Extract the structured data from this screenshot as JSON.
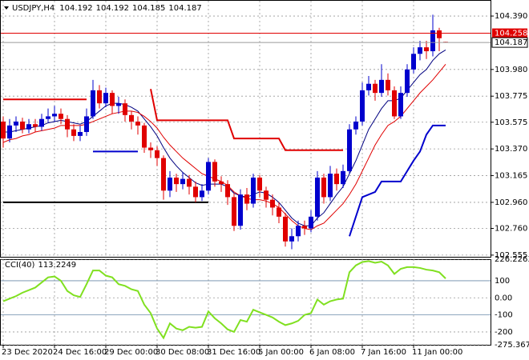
{
  "chart_data": {
    "type": "candlestick",
    "title": "USDJPY,H4",
    "categories": [
      "23 Dec 2020",
      null,
      null,
      null,
      null,
      null,
      null,
      null,
      "24 Dec 16:00",
      null,
      null,
      null,
      null,
      null,
      null,
      null,
      "29 Dec 00:00",
      null,
      null,
      null,
      null,
      null,
      null,
      null,
      "30 Dec 08:00",
      null,
      null,
      null,
      null,
      null,
      null,
      null,
      "31 Dec 16:00",
      null,
      null,
      null,
      null,
      null,
      null,
      null,
      "5 Jan 00:00",
      null,
      null,
      null,
      null,
      null,
      null,
      null,
      "6 Jan 08:00",
      null,
      null,
      null,
      null,
      null,
      null,
      null,
      "7 Jan 16:00",
      null,
      null,
      null,
      null,
      null,
      null,
      null,
      "11 Jan 00:00",
      null,
      null,
      null,
      null,
      null
    ],
    "open": [
      103.58,
      103.45,
      103.55,
      103.58,
      103.52,
      103.56,
      103.54,
      103.6,
      103.62,
      103.64,
      103.6,
      103.52,
      103.47,
      103.5,
      103.62,
      103.82,
      103.72,
      103.8,
      103.7,
      103.72,
      103.63,
      103.58,
      103.55,
      103.38,
      103.36,
      103.3,
      103.05,
      103.15,
      103.1,
      103.14,
      103.08,
      103.0,
      103.05,
      103.27,
      103.12,
      103.1,
      103.0,
      102.78,
      103.02,
      102.95,
      103.15,
      103.05,
      102.98,
      102.92,
      102.85,
      102.66,
      102.7,
      102.78,
      102.76,
      102.85,
      103.15,
      103.0,
      103.18,
      103.1,
      103.2,
      103.52,
      103.58,
      103.82,
      103.87,
      103.8,
      103.9,
      103.82,
      103.62,
      103.8,
      103.98,
      104.1,
      104.15,
      104.12,
      104.28,
      104.192
    ],
    "high": [
      103.62,
      103.6,
      103.62,
      103.61,
      103.6,
      103.6,
      103.64,
      103.68,
      103.7,
      103.68,
      103.63,
      103.56,
      103.55,
      103.68,
      103.9,
      103.86,
      103.84,
      103.82,
      103.77,
      103.75,
      103.66,
      103.62,
      103.57,
      103.42,
      103.39,
      103.32,
      103.2,
      103.18,
      103.19,
      103.17,
      103.12,
      103.1,
      103.3,
      103.29,
      103.16,
      103.13,
      103.03,
      103.06,
      103.07,
      103.18,
      103.17,
      103.08,
      103.02,
      102.96,
      102.88,
      102.76,
      102.82,
      102.82,
      102.9,
      103.2,
      103.18,
      103.24,
      103.22,
      103.25,
      103.56,
      103.62,
      103.88,
      103.93,
      103.9,
      104.02,
      103.95,
      103.85,
      103.85,
      104.02,
      104.15,
      104.2,
      104.2,
      104.4,
      104.3,
      104.192
    ],
    "low": [
      103.38,
      103.42,
      103.5,
      103.49,
      103.49,
      103.5,
      103.51,
      103.57,
      103.58,
      103.56,
      103.46,
      103.43,
      103.43,
      103.47,
      103.6,
      103.68,
      103.69,
      103.64,
      103.64,
      103.58,
      103.52,
      103.48,
      103.34,
      103.3,
      103.24,
      102.98,
      103.0,
      103.04,
      103.06,
      103.02,
      102.96,
      102.97,
      103.02,
      103.08,
      103.04,
      102.94,
      102.74,
      102.75,
      102.9,
      102.92,
      103.0,
      102.92,
      102.86,
      102.8,
      102.62,
      102.6,
      102.66,
      102.71,
      102.73,
      102.82,
      102.95,
      102.97,
      103.05,
      103.07,
      103.18,
      103.48,
      103.55,
      103.78,
      103.74,
      103.77,
      103.78,
      103.6,
      103.6,
      103.77,
      103.95,
      104.05,
      104.06,
      104.08,
      104.12,
      104.185
    ],
    "close": [
      103.45,
      103.55,
      103.58,
      103.52,
      103.56,
      103.54,
      103.6,
      103.62,
      103.64,
      103.6,
      103.52,
      103.47,
      103.5,
      103.62,
      103.82,
      103.72,
      103.8,
      103.7,
      103.72,
      103.63,
      103.58,
      103.55,
      103.38,
      103.36,
      103.3,
      103.05,
      103.15,
      103.1,
      103.14,
      103.08,
      103.0,
      103.05,
      103.27,
      103.12,
      103.1,
      103.0,
      102.78,
      103.02,
      102.95,
      103.15,
      103.05,
      102.98,
      102.92,
      102.85,
      102.66,
      102.7,
      102.78,
      102.76,
      102.85,
      103.15,
      103.0,
      103.18,
      103.1,
      103.2,
      103.52,
      103.58,
      103.82,
      103.87,
      103.8,
      103.9,
      103.82,
      103.62,
      103.8,
      103.98,
      104.1,
      104.15,
      104.12,
      104.28,
      104.22,
      104.187
    ],
    "bull_color": "#0000cd",
    "bear_color": "#e00000",
    "overlays": [
      {
        "color": "#000080",
        "values": [
          103.5,
          103.5,
          103.51,
          103.52,
          103.53,
          103.54,
          103.55,
          103.57,
          103.58,
          103.59,
          103.58,
          103.57,
          103.56,
          103.58,
          103.62,
          103.66,
          103.7,
          103.72,
          103.72,
          103.71,
          103.69,
          103.66,
          103.6,
          103.54,
          103.47,
          103.38,
          103.3,
          103.24,
          103.19,
          103.15,
          103.11,
          103.09,
          103.1,
          103.1,
          103.1,
          103.08,
          103.03,
          103.01,
          103.0,
          103.02,
          103.04,
          103.03,
          103.0,
          102.96,
          102.9,
          102.84,
          102.8,
          102.78,
          102.78,
          102.84,
          102.88,
          102.95,
          103.02,
          103.08,
          103.18,
          103.28,
          103.4,
          103.52,
          103.6,
          103.68,
          103.74,
          103.74,
          103.76,
          103.82,
          103.88,
          103.94,
          103.98,
          104.05,
          104.1,
          104.13
        ]
      },
      {
        "color": "#e00000",
        "values": [
          103.42,
          103.44,
          103.45,
          103.47,
          103.48,
          103.5,
          103.51,
          103.52,
          103.53,
          103.55,
          103.55,
          103.55,
          103.55,
          103.56,
          103.58,
          103.6,
          103.62,
          103.64,
          103.65,
          103.66,
          103.66,
          103.65,
          103.62,
          103.58,
          103.53,
          103.46,
          103.4,
          103.35,
          103.3,
          103.26,
          103.22,
          103.18,
          103.16,
          103.14,
          103.12,
          103.09,
          103.04,
          103.01,
          102.99,
          102.98,
          102.98,
          102.97,
          102.95,
          102.92,
          102.87,
          102.82,
          102.78,
          102.76,
          102.75,
          102.78,
          102.8,
          102.85,
          102.9,
          102.95,
          103.02,
          103.1,
          103.2,
          103.3,
          103.4,
          103.48,
          103.55,
          103.58,
          103.62,
          103.68,
          103.74,
          103.8,
          103.85,
          103.9,
          103.96,
          104.02
        ]
      },
      {
        "color": "#e00000",
        "width": 2,
        "values": [
          103.75,
          103.75,
          103.75,
          103.75,
          103.75,
          103.75,
          103.75,
          103.75,
          103.75,
          103.75,
          103.75,
          103.75,
          103.75,
          103.75,
          null,
          null,
          null,
          null,
          null,
          null,
          null,
          null,
          null,
          103.83,
          103.59,
          103.59,
          103.59,
          103.59,
          103.59,
          103.59,
          103.59,
          103.59,
          103.59,
          103.59,
          103.59,
          103.59,
          103.45,
          103.45,
          103.45,
          103.45,
          103.45,
          103.45,
          103.45,
          103.45,
          103.36,
          103.36,
          103.36,
          103.36,
          103.36,
          103.36,
          103.36,
          103.36,
          103.36,
          103.36,
          null,
          null,
          null,
          null,
          null,
          null,
          null,
          null,
          null,
          null,
          null,
          null,
          null,
          null,
          null,
          null
        ]
      },
      {
        "color": "#0000cd",
        "width": 2,
        "values": [
          null,
          null,
          null,
          null,
          null,
          null,
          null,
          null,
          null,
          null,
          null,
          null,
          null,
          null,
          103.35,
          103.35,
          103.35,
          103.35,
          103.35,
          103.35,
          103.35,
          103.35,
          null,
          null,
          null,
          null,
          null,
          null,
          null,
          null,
          null,
          null,
          null,
          null,
          null,
          null,
          null,
          null,
          null,
          null,
          null,
          null,
          null,
          null,
          null,
          null,
          null,
          null,
          null,
          null,
          null,
          null,
          null,
          null,
          102.7,
          102.85,
          103.0,
          103.02,
          103.04,
          103.12,
          103.12,
          103.12,
          103.12,
          103.2,
          103.28,
          103.35,
          103.48,
          103.55,
          103.55,
          103.55
        ]
      },
      {
        "color": "#000000",
        "width": 2,
        "values": [
          102.96,
          102.96,
          102.96,
          102.96,
          102.96,
          102.96,
          102.96,
          102.96,
          102.96,
          102.96,
          102.96,
          102.96,
          102.96,
          102.96,
          102.96,
          102.96,
          102.96,
          102.96,
          102.96,
          102.96,
          102.96,
          102.96,
          102.96,
          102.96,
          102.96,
          102.96,
          102.96,
          102.96,
          102.96,
          102.96,
          102.96,
          102.96,
          102.96,
          null,
          null,
          null,
          null,
          null,
          null,
          null,
          null,
          null,
          null,
          null,
          null,
          null,
          null,
          null,
          null,
          null,
          null,
          null,
          null,
          null,
          null,
          null,
          null,
          null,
          null,
          null,
          null,
          null,
          null,
          null,
          null,
          null,
          null,
          null,
          null,
          null
        ]
      }
    ],
    "alert_level": 104.258,
    "alert_color": "#e00000",
    "ylim": [
      102.542,
      104.507
    ],
    "yticks": [
      {
        "value": 104.39,
        "label": "104.390"
      },
      {
        "value": 103.98,
        "label": "103.980"
      },
      103.775,
      103.575,
      {
        "value": 103.37,
        "label": "103.370"
      },
      103.165,
      {
        "value": 102.96,
        "label": "102.960"
      },
      {
        "value": 102.76,
        "label": "102.760"
      },
      102.555
    ],
    "grid": true,
    "cci": {
      "title": "CCI(40)",
      "color": "#80e020",
      "values": [
        -20,
        -5,
        10,
        30,
        45,
        60,
        90,
        120,
        125,
        100,
        40,
        15,
        5,
        80,
        160,
        160,
        130,
        120,
        80,
        70,
        50,
        40,
        -40,
        -90,
        -180,
        -235,
        -150,
        -180,
        -190,
        -170,
        -175,
        -170,
        -80,
        -120,
        -150,
        -185,
        -200,
        -130,
        -140,
        -70,
        -85,
        -100,
        -115,
        -140,
        -160,
        -150,
        -135,
        -100,
        -90,
        -10,
        -40,
        -20,
        -10,
        -5,
        150,
        190,
        210,
        215,
        205,
        212,
        190,
        140,
        170,
        180,
        180,
        175,
        165,
        160,
        150,
        113.2249
      ],
      "ylim": [
        -275.3678,
        226.2263
      ],
      "yticks": [
        226.2263,
        100,
        {
          "value": 0,
          "label": "0.00"
        },
        -100,
        -200,
        -275.3678
      ],
      "levels": [
        100,
        -100
      ]
    }
  }
}
